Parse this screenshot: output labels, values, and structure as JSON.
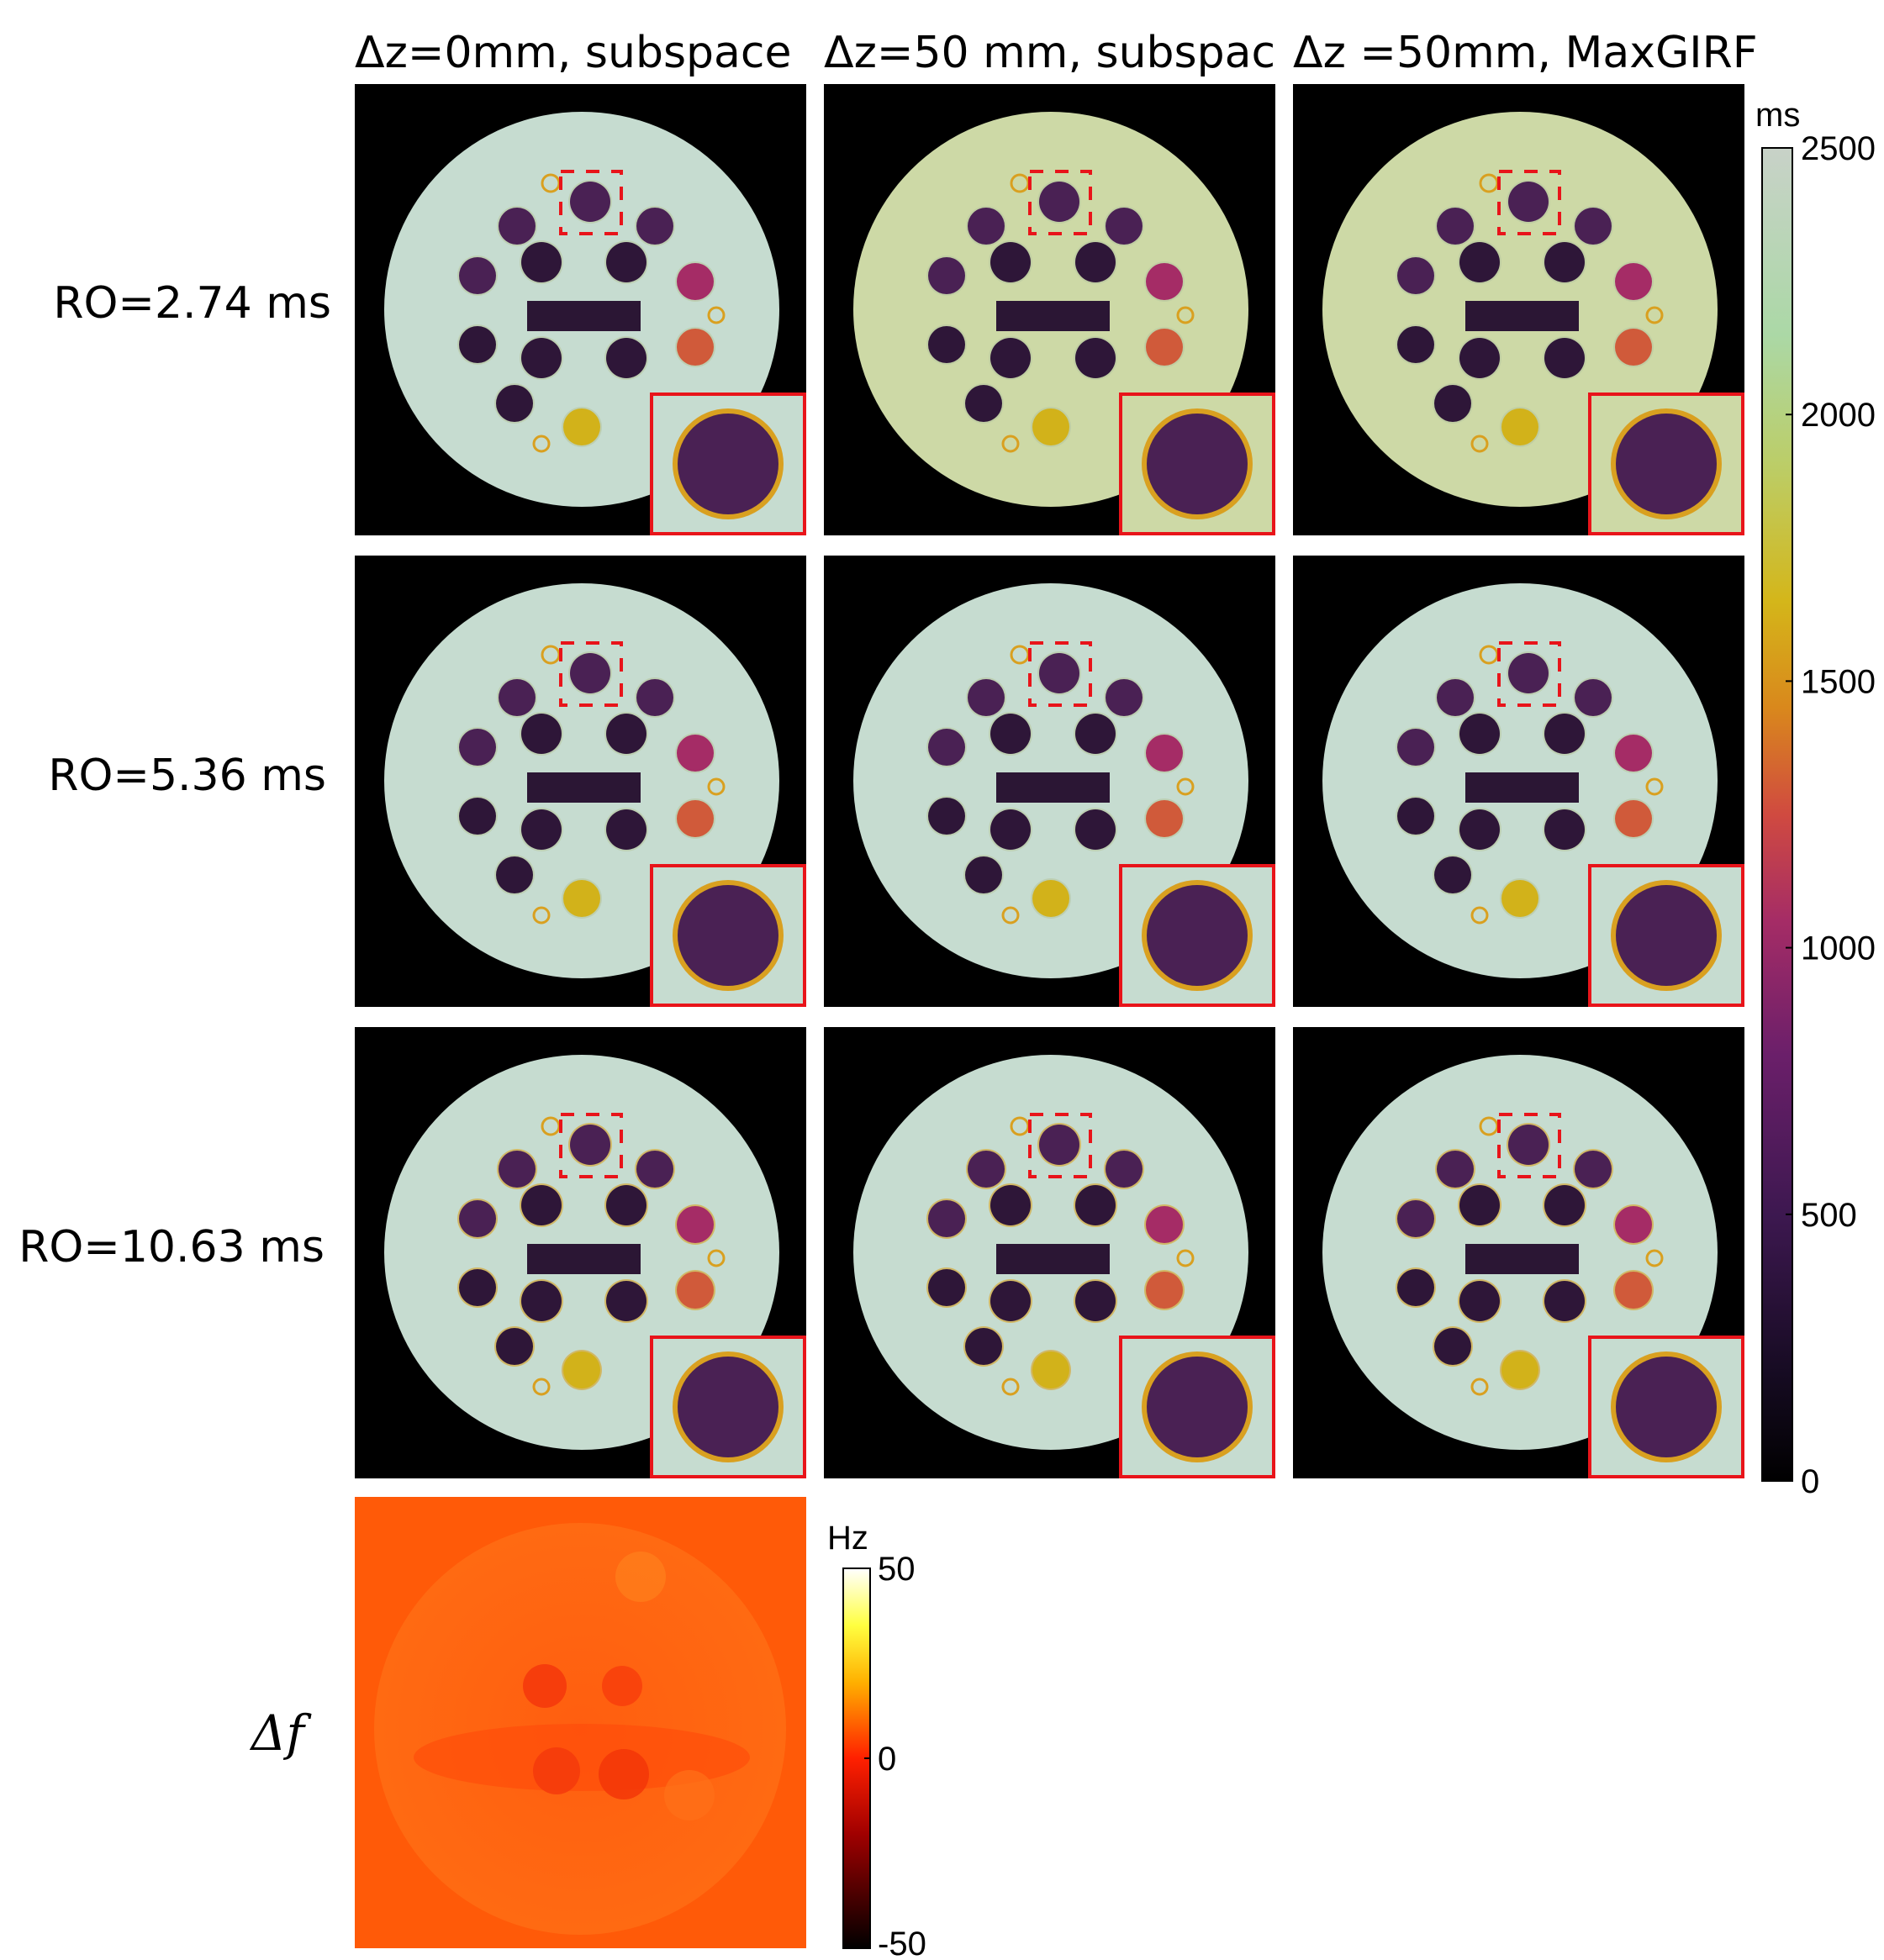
{
  "figure": {
    "column_titles": [
      "Δz=0mm, subspace",
      "Δz=50 mm, subspac",
      "Δz =50mm, MaxGIRF"
    ],
    "row_labels": [
      "RO=2.74 ms",
      "RO=5.36 ms",
      "RO=10.63 ms"
    ],
    "bottom_row_label": "Δf",
    "t1_colorbar": {
      "unit": "ms",
      "ticks": [
        "0",
        "500",
        "1000",
        "1500",
        "2000",
        "2500"
      ],
      "range": [
        0,
        2500
      ],
      "colormap": "inferno-like to pale green-grey"
    },
    "df_colorbar": {
      "unit": "Hz",
      "ticks": [
        "-50",
        "0",
        "50"
      ],
      "range": [
        -50,
        50
      ],
      "colormap": "hot"
    },
    "colors": {
      "background_ring": "#c6dcd0",
      "background_ring_offres": "#cdd9a6",
      "vial_dark": "#2e1638",
      "vial_purple": "#4a2154",
      "vial_magenta": "#a52c66",
      "vial_orange": "#d05a3a",
      "vial_yellow": "#d2b21a",
      "inset_border": "#e8141a",
      "df_background": "#ff5a08"
    }
  }
}
